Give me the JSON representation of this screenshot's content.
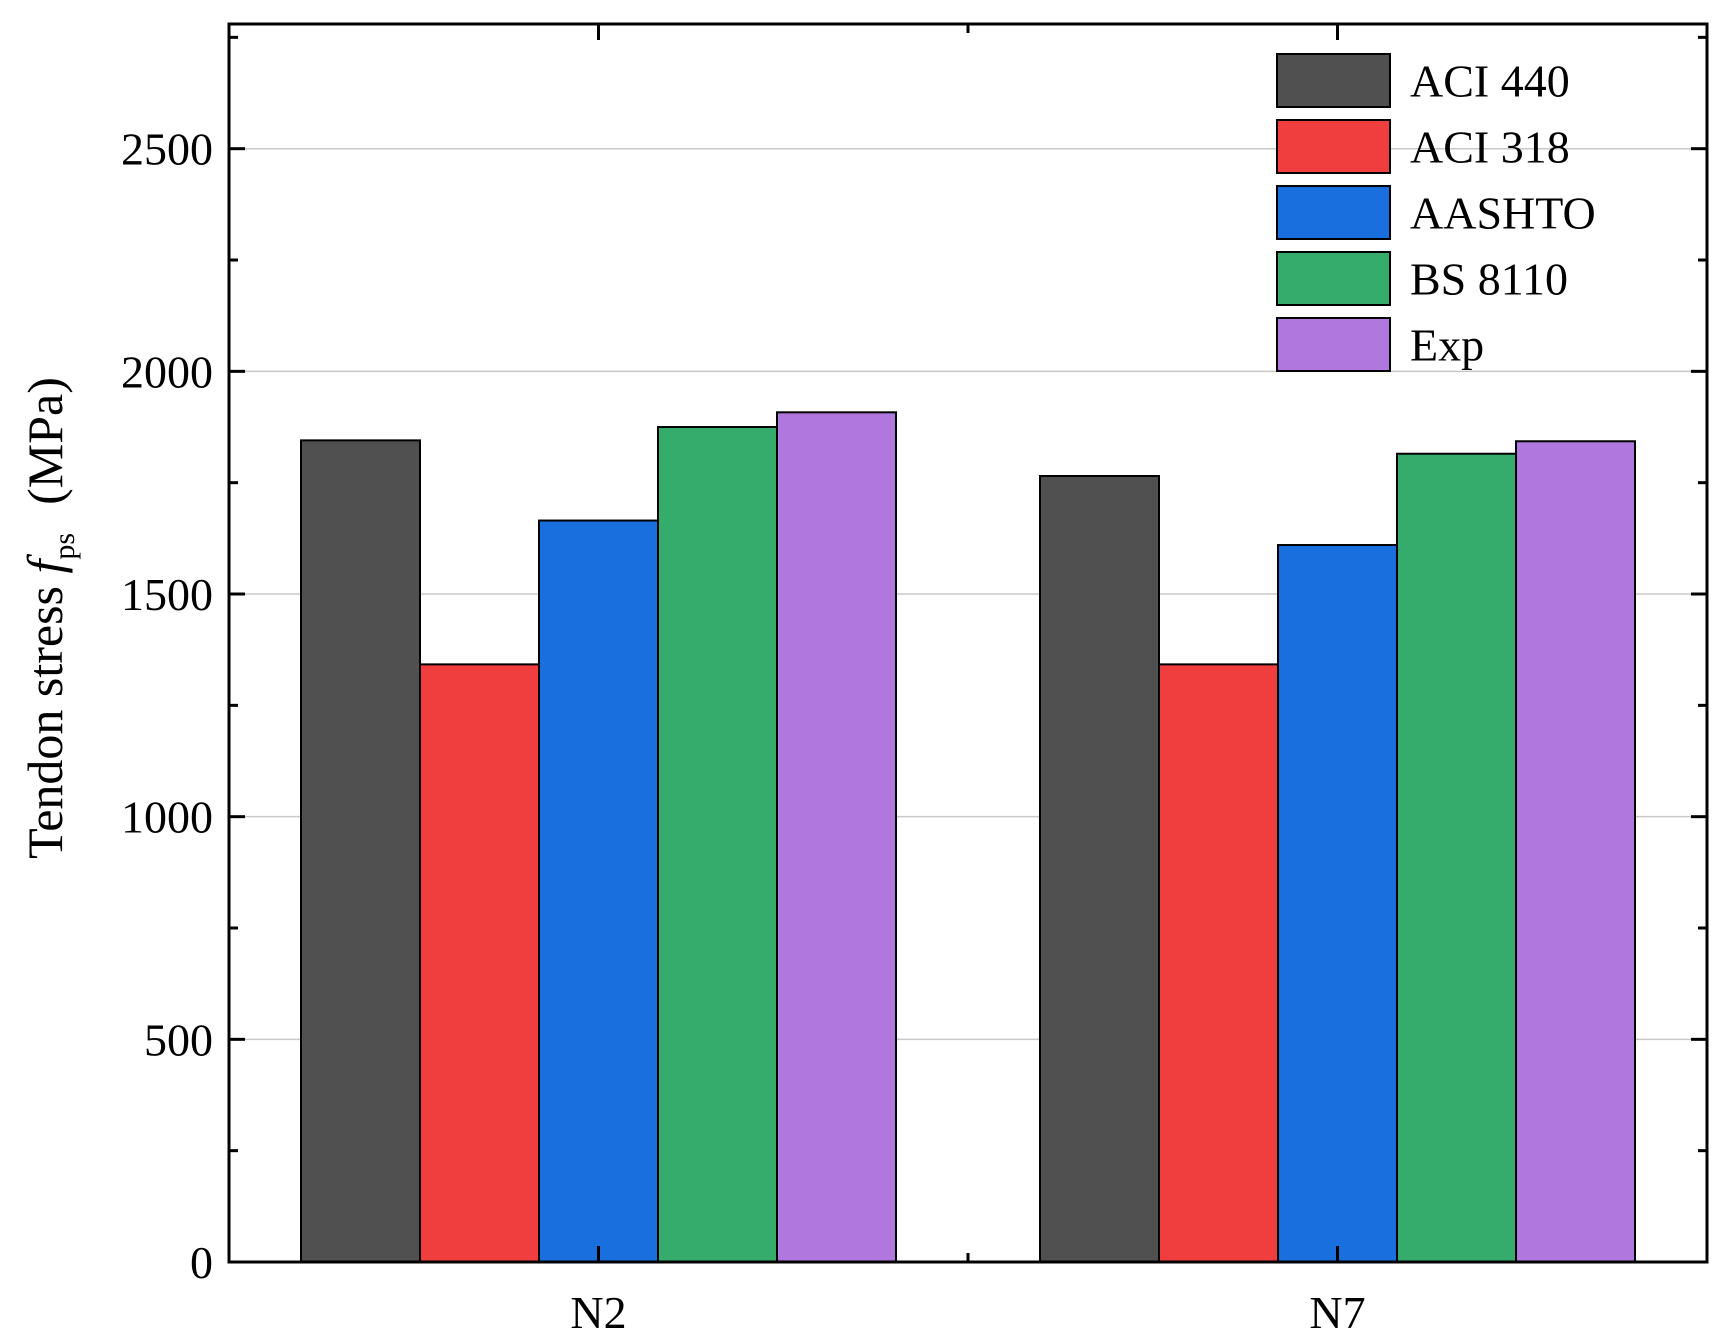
{
  "chart_data": {
    "type": "bar",
    "categories": [
      "N2",
      "N7"
    ],
    "series": [
      {
        "name": "ACI 440",
        "color": "#505050",
        "values": [
          1845,
          1765
        ]
      },
      {
        "name": "ACI 318",
        "color": "#f03e3e",
        "values": [
          1342,
          1342
        ]
      },
      {
        "name": "AASHTO",
        "color": "#1a6fde",
        "values": [
          1665,
          1610
        ]
      },
      {
        "name": "BS 8110",
        "color": "#36ac6c",
        "values": [
          1875,
          1815
        ]
      },
      {
        "name": "Exp",
        "color": "#b078df",
        "values": [
          1908,
          1843
        ]
      }
    ],
    "title": "",
    "xlabel": "",
    "ylabel": {
      "prefix": "Tendon stress ",
      "symbol": "f",
      "subscript": "ps",
      "unit": "(MPa)"
    },
    "ylim": [
      0,
      2780
    ],
    "yticks": [
      0,
      500,
      1000,
      1500,
      2000,
      2500
    ],
    "yticks_minor": [
      250,
      750,
      1250,
      1750,
      2250,
      2750
    ],
    "grid": "horizontal-major",
    "legend_position": "top-right"
  }
}
